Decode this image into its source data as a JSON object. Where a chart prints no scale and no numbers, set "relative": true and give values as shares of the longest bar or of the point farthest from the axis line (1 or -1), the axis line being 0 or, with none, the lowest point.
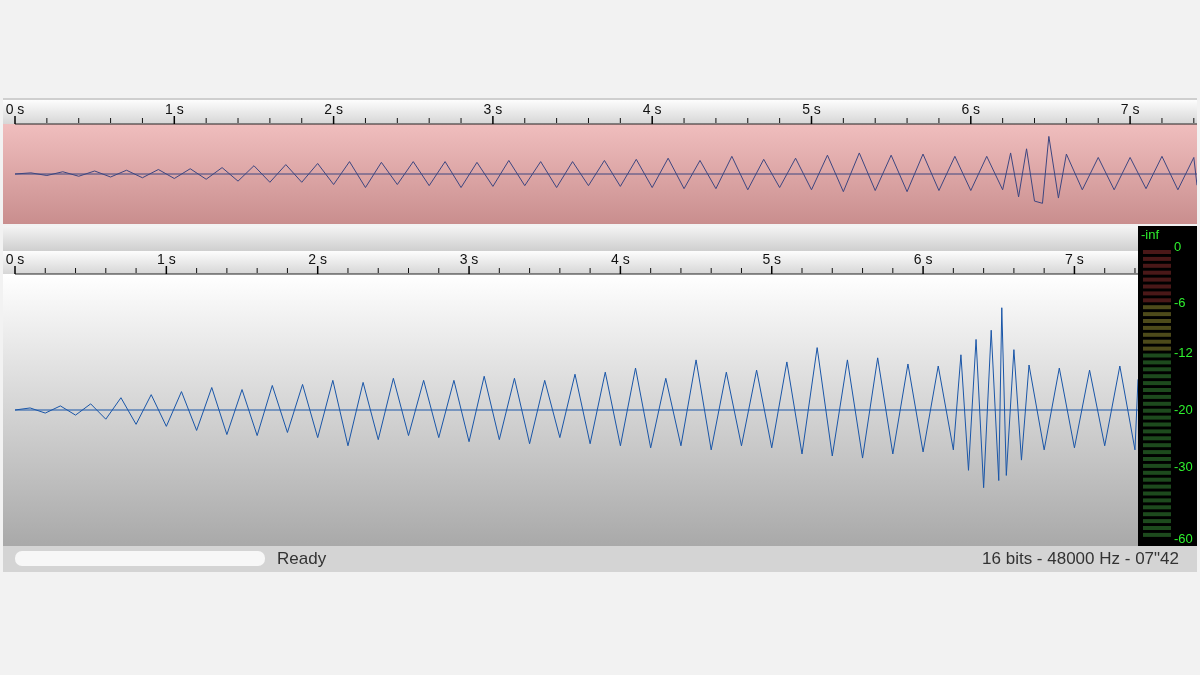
{
  "chart_data": [
    {
      "type": "line",
      "relative": true,
      "xlim": [
        0,
        7.42
      ],
      "xticks": [
        {
          "value": 0,
          "label": "0 s"
        },
        {
          "value": 1,
          "label": "1 s"
        },
        {
          "value": 2,
          "label": "2 s"
        },
        {
          "value": 3,
          "label": "3 s"
        },
        {
          "value": 4,
          "label": "4 s"
        },
        {
          "value": 5,
          "label": "5 s"
        },
        {
          "value": 6,
          "label": "6 s"
        },
        {
          "value": 7,
          "label": "7 s"
        }
      ],
      "x": [
        0,
        0.1,
        0.2,
        0.3,
        0.4,
        0.5,
        0.6,
        0.7,
        0.8,
        0.9,
        1,
        1.1,
        1.2,
        1.3,
        1.4,
        1.5,
        1.6,
        1.7,
        1.8,
        1.9,
        2,
        2.1,
        2.2,
        2.3,
        2.4,
        2.5,
        2.6,
        2.7,
        2.8,
        2.9,
        3,
        3.1,
        3.2,
        3.3,
        3.4,
        3.5,
        3.6,
        3.7,
        3.8,
        3.9,
        4,
        4.1,
        4.2,
        4.3,
        4.4,
        4.5,
        4.6,
        4.7,
        4.8,
        4.9,
        5,
        5.1,
        5.2,
        5.3,
        5.4,
        5.5,
        5.6,
        5.7,
        5.8,
        5.9,
        6,
        6.1,
        6.2,
        6.25,
        6.3,
        6.35,
        6.4,
        6.45,
        6.49,
        6.55,
        6.6,
        6.7,
        6.8,
        6.9,
        7,
        7.1,
        7.2,
        7.3,
        7.4,
        7.42
      ],
      "series": [
        {
          "color": "#3d4680",
          "values": [
            0,
            0.03,
            -0.04,
            0.06,
            -0.06,
            0.08,
            -0.08,
            0.1,
            -0.1,
            0.12,
            -0.12,
            0.14,
            -0.14,
            0.17,
            -0.19,
            0.22,
            -0.22,
            0.25,
            -0.22,
            0.28,
            -0.28,
            0.33,
            -0.36,
            0.31,
            -0.28,
            0.33,
            -0.31,
            0.33,
            -0.36,
            0.31,
            -0.33,
            0.36,
            -0.31,
            0.33,
            -0.36,
            0.33,
            -0.31,
            0.36,
            -0.33,
            0.39,
            -0.36,
            0.42,
            -0.39,
            0.36,
            -0.39,
            0.47,
            -0.42,
            0.39,
            -0.36,
            0.42,
            -0.42,
            0.5,
            -0.47,
            0.56,
            -0.44,
            0.5,
            -0.47,
            0.53,
            -0.44,
            0.47,
            -0.44,
            0.47,
            -0.42,
            0.56,
            -0.61,
            0.67,
            -0.72,
            -0.78,
            1,
            -0.64,
            0.53,
            -0.42,
            0.44,
            -0.42,
            0.44,
            -0.39,
            0.47,
            -0.42,
            0.44,
            -0.3
          ]
        }
      ],
      "ref_lines": [
        {
          "axis": "y",
          "value": 0,
          "color": "#3d4680"
        }
      ]
    },
    {
      "type": "line",
      "relative": true,
      "xlim": [
        0,
        7.42
      ],
      "xticks": [
        {
          "value": 0,
          "label": "0 s"
        },
        {
          "value": 1,
          "label": "1 s"
        },
        {
          "value": 2,
          "label": "2 s"
        },
        {
          "value": 3,
          "label": "3 s"
        },
        {
          "value": 4,
          "label": "4 s"
        },
        {
          "value": 5,
          "label": "5 s"
        },
        {
          "value": 6,
          "label": "6 s"
        },
        {
          "value": 7,
          "label": "7 s"
        }
      ],
      "x": [
        0,
        0.1,
        0.2,
        0.3,
        0.4,
        0.5,
        0.6,
        0.7,
        0.8,
        0.9,
        1,
        1.1,
        1.2,
        1.3,
        1.4,
        1.5,
        1.6,
        1.7,
        1.8,
        1.9,
        2,
        2.1,
        2.2,
        2.3,
        2.4,
        2.5,
        2.6,
        2.7,
        2.8,
        2.9,
        3,
        3.1,
        3.2,
        3.3,
        3.4,
        3.5,
        3.6,
        3.7,
        3.8,
        3.9,
        4,
        4.1,
        4.2,
        4.3,
        4.4,
        4.5,
        4.6,
        4.7,
        4.8,
        4.9,
        5,
        5.1,
        5.2,
        5.3,
        5.4,
        5.5,
        5.6,
        5.7,
        5.8,
        5.9,
        6,
        6.1,
        6.2,
        6.25,
        6.3,
        6.35,
        6.4,
        6.45,
        6.5,
        6.52,
        6.55,
        6.6,
        6.65,
        6.7,
        6.8,
        6.9,
        7,
        7.1,
        7.2,
        7.3,
        7.4,
        7.42
      ],
      "series": [
        {
          "color": "#1a56a8",
          "values": [
            0,
            0.02,
            -0.03,
            0.04,
            -0.05,
            0.06,
            -0.09,
            0.12,
            -0.14,
            0.15,
            -0.16,
            0.18,
            -0.2,
            0.22,
            -0.24,
            0.2,
            -0.25,
            0.24,
            -0.22,
            0.25,
            -0.27,
            0.29,
            -0.35,
            0.27,
            -0.29,
            0.31,
            -0.25,
            0.29,
            -0.27,
            0.29,
            -0.31,
            0.33,
            -0.29,
            0.31,
            -0.33,
            0.29,
            -0.27,
            0.35,
            -0.33,
            0.37,
            -0.35,
            0.41,
            -0.37,
            0.31,
            -0.35,
            0.49,
            -0.39,
            0.37,
            -0.35,
            0.39,
            -0.37,
            0.47,
            -0.43,
            0.61,
            -0.45,
            0.49,
            -0.47,
            0.51,
            -0.43,
            0.45,
            -0.41,
            0.43,
            -0.39,
            0.54,
            -0.59,
            0.69,
            -0.76,
            0.78,
            -0.69,
            1,
            -0.64,
            0.59,
            -0.49,
            0.44,
            -0.39,
            0.41,
            -0.37,
            0.39,
            -0.35,
            0.43,
            -0.39,
            0.3
          ]
        }
      ],
      "ref_lines": [
        {
          "axis": "y",
          "value": 0,
          "color": "#1a56a8"
        }
      ],
      "annotations": [
        "Ready",
        "16 bits - 48000 Hz - 07\"42"
      ]
    },
    {
      "type": "other",
      "annotations": [
        "-inf",
        "0",
        "-6",
        "-12",
        "-20",
        "-30",
        "-60"
      ]
    }
  ]
}
